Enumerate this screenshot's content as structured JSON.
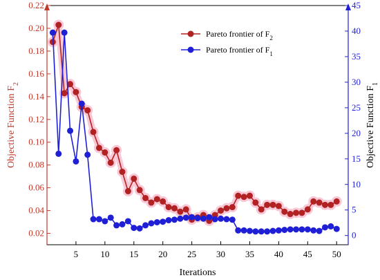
{
  "chart_data": {
    "type": "line",
    "xlabel": "Iterations",
    "x_ticks": [
      "5",
      "10",
      "15",
      "20",
      "25",
      "30",
      "35",
      "40",
      "45",
      "50"
    ],
    "xlim": [
      0,
      52
    ],
    "y_left": {
      "label_main": "Objective Function F",
      "label_sub": "2",
      "ylim": [
        0.01,
        0.22
      ],
      "ticks": [
        "0.02",
        "0.04",
        "0.06",
        "0.08",
        "0.10",
        "0.12",
        "0.14",
        "0.16",
        "0.18",
        "0.20",
        "0.22"
      ],
      "color": "#c0392b"
    },
    "y_right": {
      "label_main": "Objective Function F",
      "label_sub": "1",
      "ylim": [
        -1.8,
        45
      ],
      "ticks": [
        "0",
        "5",
        "10",
        "15",
        "20",
        "25",
        "30",
        "35",
        "40",
        "45"
      ],
      "color": "#1f1fd6"
    },
    "legend_position": "top-right",
    "grid": false,
    "series": [
      {
        "name_main": "Pareto frontier of F",
        "name_sub": "2",
        "axis": "left",
        "color": "#b22222",
        "highlight": "#f8c8d6",
        "x": [
          1,
          2,
          3,
          4,
          5,
          6,
          7,
          8,
          9,
          10,
          11,
          12,
          13,
          14,
          15,
          16,
          17,
          18,
          19,
          20,
          21,
          22,
          23,
          24,
          25,
          26,
          27,
          28,
          29,
          30,
          31,
          32,
          33,
          34,
          35,
          36,
          37,
          38,
          39,
          40,
          41,
          42,
          43,
          44,
          45,
          46,
          47,
          48,
          49,
          50
        ],
        "values": [
          0.188,
          0.203,
          0.143,
          0.151,
          0.144,
          0.131,
          0.128,
          0.109,
          0.095,
          0.091,
          0.082,
          0.093,
          0.074,
          0.057,
          0.068,
          0.058,
          0.051,
          0.047,
          0.05,
          0.048,
          0.043,
          0.042,
          0.039,
          0.041,
          0.032,
          0.034,
          0.036,
          0.031,
          0.036,
          0.04,
          0.042,
          0.043,
          0.053,
          0.052,
          0.053,
          0.047,
          0.041,
          0.045,
          0.045,
          0.044,
          0.039,
          0.037,
          0.038,
          0.038,
          0.041,
          0.048,
          0.047,
          0.045,
          0.045,
          0.048
        ]
      },
      {
        "name_main": "Pareto frontier of F",
        "name_sub": "1",
        "axis": "right",
        "color": "#1f1fd6",
        "x": [
          1,
          2,
          3,
          4,
          5,
          6,
          7,
          8,
          9,
          10,
          11,
          12,
          13,
          14,
          15,
          16,
          17,
          18,
          19,
          20,
          21,
          22,
          23,
          24,
          25,
          26,
          27,
          28,
          29,
          30,
          31,
          32,
          33,
          34,
          35,
          36,
          37,
          38,
          39,
          40,
          41,
          42,
          43,
          44,
          45,
          46,
          47,
          48,
          49,
          50
        ],
        "values": [
          39.7,
          16.0,
          39.7,
          20.5,
          14.5,
          25.8,
          15.8,
          3.2,
          3.2,
          2.8,
          3.5,
          2.0,
          2.2,
          2.8,
          1.5,
          1.4,
          2.0,
          2.4,
          2.6,
          2.7,
          3.0,
          3.1,
          3.3,
          3.5,
          3.6,
          3.4,
          3.3,
          3.6,
          3.2,
          3.3,
          3.2,
          3.1,
          1.0,
          1.0,
          0.9,
          0.8,
          0.8,
          0.8,
          0.9,
          1.0,
          1.1,
          1.2,
          1.2,
          1.2,
          1.2,
          1.0,
          0.9,
          1.6,
          1.8,
          1.3
        ]
      }
    ]
  }
}
